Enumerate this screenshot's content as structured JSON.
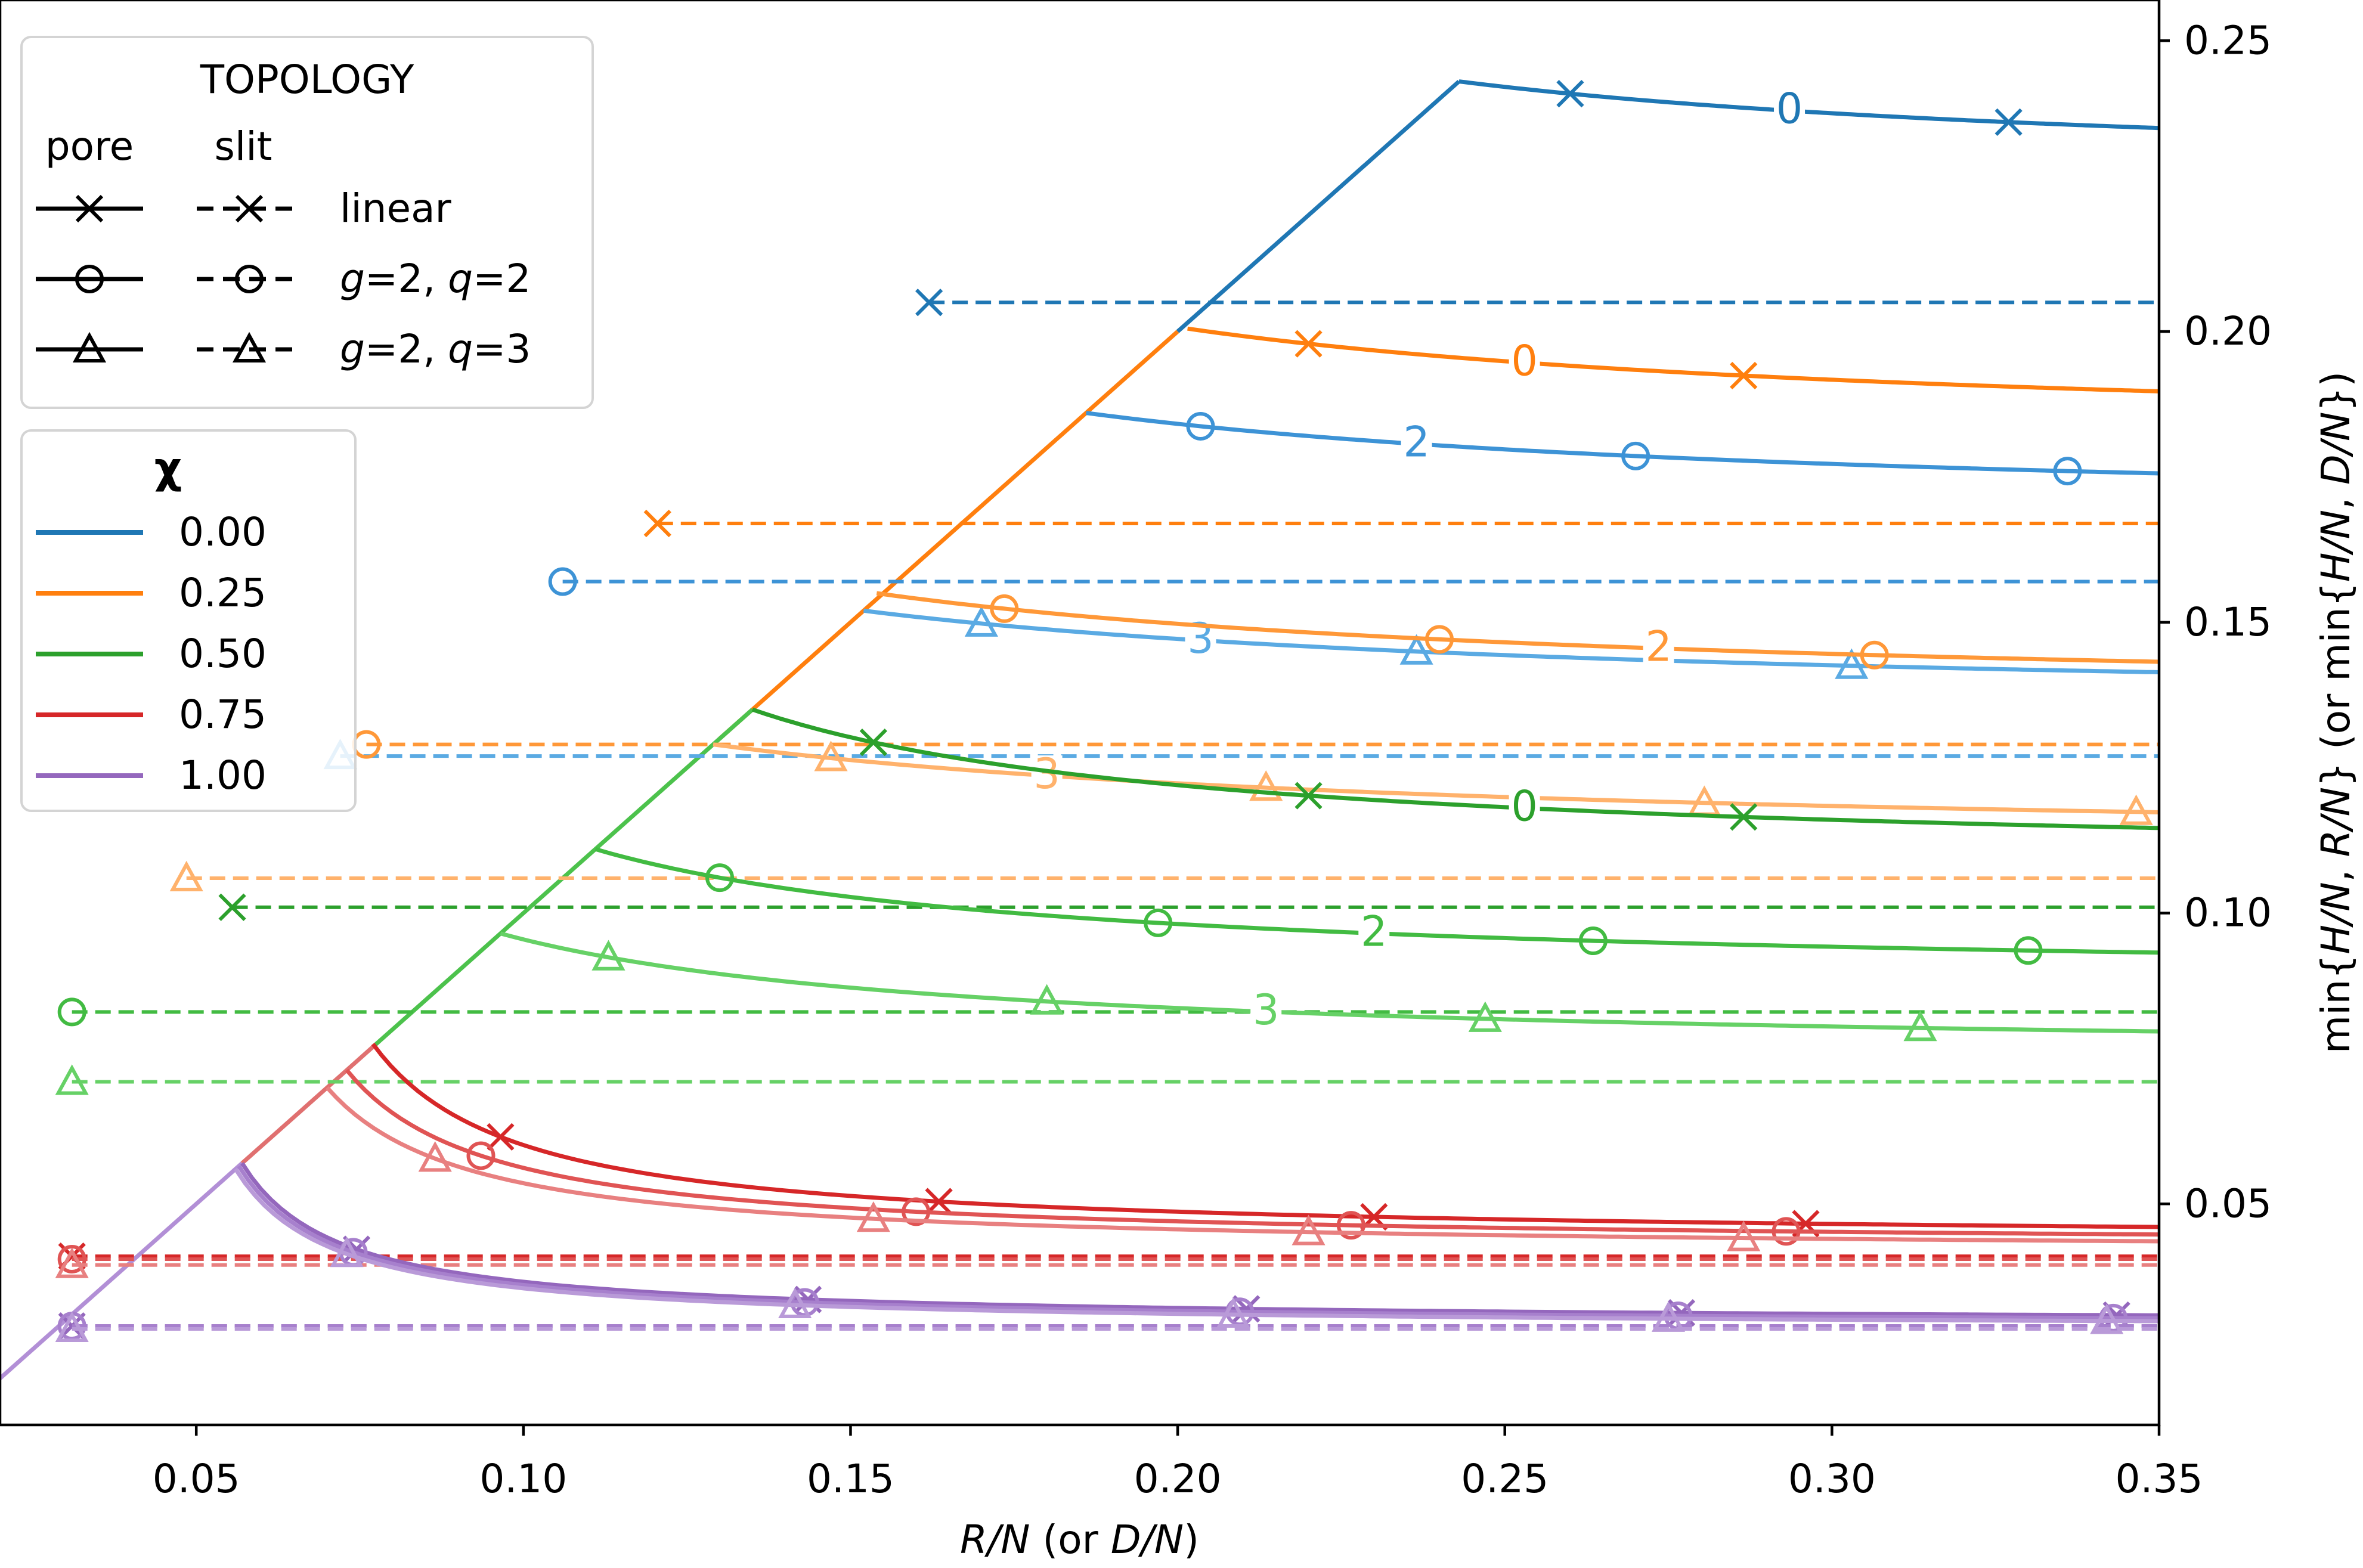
{
  "chart_data": {
    "type": "line",
    "xlabel_parts": [
      {
        "text": "R/N",
        "italic": true
      },
      {
        "text": " (or ",
        "italic": false
      },
      {
        "text": "D/N",
        "italic": true
      },
      {
        "text": ")",
        "italic": false
      }
    ],
    "ylabel_parts": [
      {
        "text": "min{",
        "italic": false
      },
      {
        "text": "H/N",
        "italic": true
      },
      {
        "text": ", ",
        "italic": false
      },
      {
        "text": "R/N",
        "italic": true
      },
      {
        "text": "} (or min{",
        "italic": false
      },
      {
        "text": "H/N",
        "italic": true
      },
      {
        "text": ", ",
        "italic": false
      },
      {
        "text": "D/N",
        "italic": true
      },
      {
        "text": "})",
        "italic": false
      }
    ],
    "xlim": [
      0.02,
      0.35
    ],
    "ylim": [
      0.012,
      0.257
    ],
    "x_ticks": [
      0.05,
      0.1,
      0.15,
      0.2,
      0.25,
      0.3,
      0.35
    ],
    "x_tick_labels": [
      "0.05",
      "0.10",
      "0.15",
      "0.20",
      "0.25",
      "0.30",
      "0.35"
    ],
    "y_ticks": [
      0.05,
      0.1,
      0.15,
      0.2,
      0.25
    ],
    "y_tick_labels": [
      "0.05",
      "0.10",
      "0.15",
      "0.20",
      "0.25"
    ],
    "y_axis_side": "right",
    "grid": false,
    "envelope": [
      [
        0.02,
        0.02
      ],
      [
        0.243,
        0.243
      ]
    ],
    "envelope_segments": [
      {
        "chi": "0.00",
        "from": 0.2,
        "to": 0.243
      },
      {
        "chi": "0.25",
        "from": 0.13,
        "to": 0.2
      },
      {
        "chi": "0.50",
        "from": 0.077,
        "to": 0.135
      },
      {
        "chi": "0.75",
        "from": 0.057,
        "to": 0.077
      },
      {
        "chi": "1.00",
        "from": 0.02,
        "to": 0.057
      }
    ],
    "series": [
      {
        "name": "pore linear",
        "chi": "0.00",
        "topology": "linear",
        "shade": 0,
        "pore": {
          "peak": [
            0.243,
            0.243
          ],
          "end": 0.226,
          "k": 0.12,
          "markers": [
            0.26,
            0.327
          ],
          "label": {
            "text": "0",
            "x": 0.2935
          }
        },
        "slit": {
          "y": 0.205,
          "x0": 0.162
        }
      },
      {
        "name": "pore g=2, q=2",
        "chi": "0.00",
        "topology": "g2q2",
        "shade": 1,
        "pore": {
          "peak": [
            0.186,
            0.186
          ],
          "end": 0.168,
          "k": 0.12,
          "markers": [
            0.2035,
            0.27,
            0.336
          ],
          "label": {
            "text": "2",
            "x": 0.2365
          }
        },
        "slit": {
          "y": 0.157,
          "x0": 0.106
        }
      },
      {
        "name": "pore g=2, q=3",
        "chi": "0.00",
        "topology": "g2q3",
        "shade": 2,
        "pore": {
          "peak": [
            0.152,
            0.152
          ],
          "end": 0.135,
          "k": 0.12,
          "markers": [
            0.17,
            0.2365,
            0.303
          ],
          "label": {
            "text": "3",
            "x": 0.2035
          }
        },
        "slit": {
          "y": 0.127,
          "x0": 0.072
        }
      },
      {
        "name": "pore linear",
        "chi": "0.25",
        "topology": "linear",
        "shade": 0,
        "pore": {
          "peak": [
            0.2015,
            0.2005
          ],
          "end": 0.181,
          "k": 0.12,
          "markers": [
            0.22,
            0.2865
          ],
          "label": {
            "text": "0",
            "x": 0.253
          }
        },
        "slit": {
          "y": 0.167,
          "x0": 0.1205
        }
      },
      {
        "name": "pore g=2, q=2",
        "chi": "0.25",
        "topology": "g2q2",
        "shade": 1,
        "pore": {
          "peak": [
            0.154,
            0.155
          ],
          "end": 0.136,
          "k": 0.12,
          "markers": [
            0.1735,
            0.24,
            0.3065
          ],
          "label": {
            "text": "2",
            "x": 0.2735
          }
        },
        "slit": {
          "y": 0.129,
          "x0": 0.076
        }
      },
      {
        "name": "pore g=2, q=3",
        "chi": "0.25",
        "topology": "g2q3",
        "shade": 2,
        "pore": {
          "peak": [
            0.129,
            0.129
          ],
          "end": 0.111,
          "k": 0.12,
          "markers": [
            0.147,
            0.2135,
            0.2805,
            0.3465
          ],
          "label": {
            "text": "3",
            "x": 0.18
          }
        },
        "slit": {
          "y": 0.106,
          "x0": 0.0485
        }
      },
      {
        "name": "pore linear",
        "chi": "0.50",
        "topology": "linear",
        "shade": 0,
        "pore": {
          "peak": [
            0.135,
            0.135
          ],
          "end": 0.108,
          "k": 0.07,
          "markers": [
            0.1535,
            0.22,
            0.2865
          ],
          "label": {
            "text": "0",
            "x": 0.253
          }
        },
        "slit": {
          "y": 0.101,
          "x0": 0.0555
        }
      },
      {
        "name": "pore g=2, q=2",
        "chi": "0.50",
        "topology": "g2q2",
        "shade": 1,
        "pore": {
          "peak": [
            0.111,
            0.111
          ],
          "end": 0.088,
          "k": 0.07,
          "markers": [
            0.13,
            0.197,
            0.2635,
            0.33
          ],
          "label": {
            "text": "2",
            "x": 0.23
          }
        },
        "slit": {
          "y": 0.083,
          "x0": 0.031
        }
      },
      {
        "name": "pore g=2, q=3",
        "chi": "0.50",
        "topology": "g2q3",
        "shade": 2,
        "pore": {
          "peak": [
            0.0965,
            0.0965
          ],
          "end": 0.075,
          "k": 0.07,
          "markers": [
            0.113,
            0.18,
            0.247,
            0.3135
          ],
          "label": {
            "text": "3",
            "x": 0.2135
          }
        },
        "slit": {
          "y": 0.071,
          "x0": 0.031
        }
      },
      {
        "name": "pore linear",
        "chi": "0.75",
        "topology": "linear",
        "shade": 0,
        "pore": {
          "peak": [
            0.077,
            0.0775
          ],
          "end": 0.0435,
          "k": 0.022,
          "markers": [
            0.0965,
            0.1635,
            0.23,
            0.296
          ]
        },
        "slit": {
          "y": 0.041,
          "x0": 0.031
        }
      },
      {
        "name": "pore g=2, q=2",
        "chi": "0.75",
        "topology": "g2q2",
        "shade": 1,
        "pore": {
          "peak": [
            0.073,
            0.073
          ],
          "end": 0.0425,
          "k": 0.022,
          "markers": [
            0.0935,
            0.16,
            0.2265,
            0.293
          ]
        },
        "slit": {
          "y": 0.0405,
          "x0": 0.031
        }
      },
      {
        "name": "pore g=2, q=3",
        "chi": "0.75",
        "topology": "g2q3",
        "shade": 2,
        "pore": {
          "peak": [
            0.07,
            0.07
          ],
          "end": 0.0415,
          "k": 0.022,
          "markers": [
            0.0865,
            0.1535,
            0.22,
            0.2865
          ]
        },
        "slit": {
          "y": 0.0395,
          "x0": 0.031
        }
      },
      {
        "name": "pore linear",
        "chi": "1.00",
        "topology": "linear",
        "shade": 0,
        "pore": {
          "peak": [
            0.057,
            0.057
          ],
          "end": 0.0295,
          "k": 0.015,
          "markers": [
            0.0745,
            0.1435,
            0.2105,
            0.277,
            0.3435
          ]
        },
        "slit": {
          "y": 0.029,
          "x0": 0.031
        }
      },
      {
        "name": "pore g=2, q=2",
        "chi": "1.00",
        "topology": "g2q2",
        "shade": 1,
        "pore": {
          "peak": [
            0.0565,
            0.0565
          ],
          "end": 0.029,
          "k": 0.015,
          "markers": [
            0.074,
            0.143,
            0.2095,
            0.2765,
            0.343
          ]
        },
        "slit": {
          "y": 0.029,
          "x0": 0.031
        }
      },
      {
        "name": "pore g=2, q=3",
        "chi": "1.00",
        "topology": "g2q3",
        "shade": 2,
        "pore": {
          "peak": [
            0.056,
            0.056
          ],
          "end": 0.0285,
          "k": 0.015,
          "markers": [
            0.073,
            0.1415,
            0.2085,
            0.275,
            0.342
          ]
        },
        "slit": {
          "y": 0.0285,
          "x0": 0.031
        }
      }
    ],
    "legend_topology": {
      "title": "TOPOLOGY",
      "col_pore": "pore",
      "col_slit": "slit",
      "placement": "top-left",
      "entries": [
        {
          "marker": "x",
          "label_parts": [
            {
              "text": "linear",
              "italic": false
            }
          ]
        },
        {
          "marker": "o",
          "label_parts": [
            {
              "text": "g",
              "italic": true
            },
            {
              "text": "=2, ",
              "italic": false
            },
            {
              "text": "q",
              "italic": true
            },
            {
              "text": "=2",
              "italic": false
            }
          ]
        },
        {
          "marker": "^",
          "label_parts": [
            {
              "text": "g",
              "italic": true
            },
            {
              "text": "=2, ",
              "italic": false
            },
            {
              "text": "q",
              "italic": true
            },
            {
              "text": "=3",
              "italic": false
            }
          ]
        }
      ]
    },
    "legend_chi": {
      "title": "χ",
      "placement": "upper-left",
      "entries": [
        {
          "label": "0.00",
          "color": "#1f77b4"
        },
        {
          "label": "0.25",
          "color": "#ff7f0e"
        },
        {
          "label": "0.50",
          "color": "#2ca02c"
        },
        {
          "label": "0.75",
          "color": "#d62728"
        },
        {
          "label": "1.00",
          "color": "#9467bd"
        }
      ]
    },
    "colors": {
      "0.00": [
        "#1f77b4",
        "#3d93d6",
        "#5aaae3"
      ],
      "0.25": [
        "#ff7f0e",
        "#ff9838",
        "#ffb26c"
      ],
      "0.50": [
        "#2ca02c",
        "#42bb42",
        "#66d166"
      ],
      "0.75": [
        "#d62728",
        "#e05454",
        "#e88080"
      ],
      "1.00": [
        "#9467bd",
        "#a780cd",
        "#b99ad8"
      ]
    }
  }
}
